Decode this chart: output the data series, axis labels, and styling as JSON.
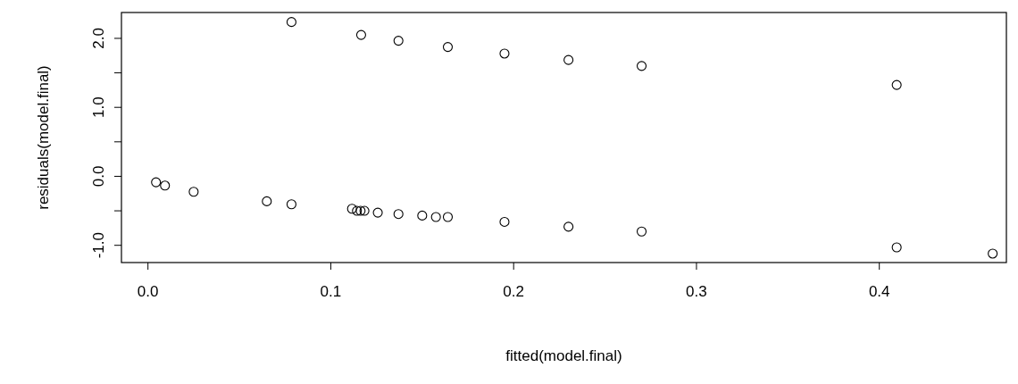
{
  "chart_data": {
    "type": "scatter",
    "xlabel": "fitted(model.final)",
    "ylabel": "residuals(model.final)",
    "marker": "circle",
    "grid": false,
    "xlim": [
      -0.0145,
      0.4695
    ],
    "ylim": [
      -1.25,
      2.375
    ],
    "xticks": [
      {
        "value": 0,
        "label": "0.0"
      },
      {
        "value": 0.1,
        "label": "0.1"
      },
      {
        "value": 0.2,
        "label": "0.2"
      },
      {
        "value": 0.3,
        "label": "0.3"
      },
      {
        "value": 0.4,
        "label": "0.4"
      }
    ],
    "yticks": [
      {
        "value": -1,
        "label": "-1.0"
      },
      {
        "value": -0.5,
        "label": null
      },
      {
        "value": 0,
        "label": "0.0"
      },
      {
        "value": 0.5,
        "label": null
      },
      {
        "value": 1,
        "label": "1.0"
      },
      {
        "value": 1.5,
        "label": null
      },
      {
        "value": 2,
        "label": "2.0"
      }
    ],
    "series": [
      {
        "color": "#000000",
        "x": [
          0.0044,
          0.0093,
          0.025,
          0.065,
          0.0785,
          0.0785,
          0.1166,
          0.1116,
          0.1143,
          0.1163,
          0.1184,
          0.1257,
          0.137,
          0.137,
          0.15,
          0.1575,
          0.164,
          0.164,
          0.195,
          0.195,
          0.23,
          0.23,
          0.27,
          0.27,
          0.4095,
          0.4095,
          0.462
        ],
        "values": [
          -0.086,
          -0.134,
          -0.224,
          -0.362,
          2.237,
          -0.405,
          2.05,
          -0.47,
          -0.5,
          -0.5,
          -0.5,
          -0.526,
          1.966,
          -0.547,
          -0.569,
          -0.59,
          1.875,
          -0.59,
          1.78,
          -0.66,
          1.687,
          -0.73,
          1.6,
          -0.8,
          1.325,
          -1.03,
          -1.12
        ]
      }
    ]
  }
}
